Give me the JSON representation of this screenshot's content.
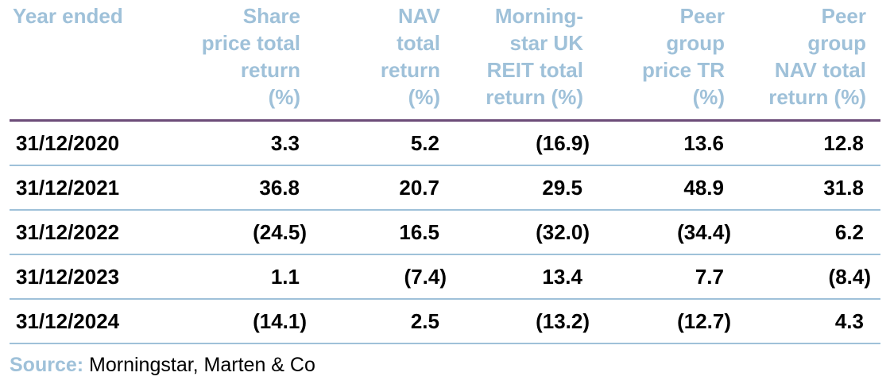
{
  "table": {
    "headers": [
      "Year ended",
      "Share price total return (%)",
      "NAV total return (%)",
      "Morning-star UK REIT total return (%)",
      "Peer group price TR (%)",
      "Peer group NAV total return (%)"
    ],
    "header_lines": [
      [
        "Year ended"
      ],
      [
        "Share",
        "price total",
        "return",
        "(%)"
      ],
      [
        "NAV",
        "total",
        "return",
        "(%)"
      ],
      [
        "Morning-",
        "star UK",
        "REIT total",
        "return (%)"
      ],
      [
        "Peer",
        "group",
        "price TR",
        "(%)"
      ],
      [
        "Peer",
        "group",
        "NAV total",
        "return (%)"
      ]
    ],
    "rows": [
      [
        "31/12/2020",
        "3.3",
        "5.2",
        "(16.9)",
        "13.6",
        "12.8"
      ],
      [
        "31/12/2021",
        "36.8",
        "20.7",
        "29.5",
        "48.9",
        "31.8"
      ],
      [
        "31/12/2022",
        "(24.5)",
        "16.5",
        "(32.0)",
        "(34.4)",
        "6.2"
      ],
      [
        "31/12/2023",
        "1.1",
        "(7.4)",
        "13.4",
        "7.7",
        "(8.4)"
      ],
      [
        "31/12/2024",
        "(14.1)",
        "2.5",
        "(13.2)",
        "(12.7)",
        "4.3"
      ]
    ]
  },
  "source": {
    "label": "Source:",
    "text": "Morningstar, Marten & Co"
  },
  "colors": {
    "header_text": "#9fc1d9",
    "header_rule": "#6c4c78",
    "row_rule": "#9fc1d9",
    "body_text": "#000000"
  }
}
